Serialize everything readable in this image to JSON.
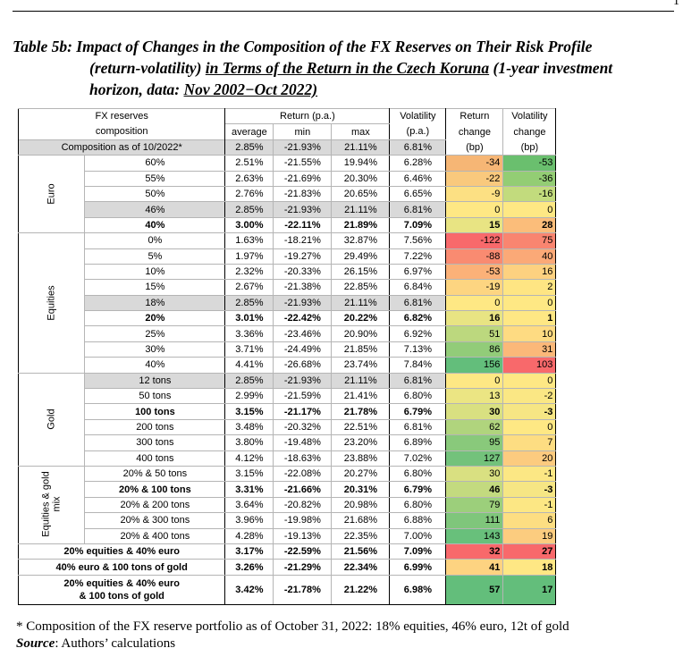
{
  "page_marker": "1",
  "caption": {
    "label": "Table 5b:",
    "line1": "Impact of Changes in the Composition of the FX Reserves on Their Risk Profile",
    "line2_a": "(return-volatility) ",
    "line2_b": "in Terms of the Return in the Czech Koruna",
    "line2_c": " (1-year investment",
    "line3_a": "horizon, data: ",
    "line3_b": "Nov 2002−Oct 2022)"
  },
  "header": {
    "fx1": "FX reserves",
    "fx2": "composition",
    "ret": "Return (p.a.)",
    "avg": "average",
    "min": "min",
    "max": "max",
    "vol1": "Volatility",
    "vol2": "(p.a.)",
    "rc1": "Return",
    "rc2": "change",
    "rc3": "(bp)",
    "vc1": "Volatility",
    "vc2": "change",
    "vc3": "(bp)"
  },
  "composition_row": {
    "label": "Composition as of 10/2022*",
    "avg": "2.85%",
    "min": "-21.93%",
    "max": "21.11%",
    "vol": "6.81%"
  },
  "groups": [
    {
      "name": "Euro",
      "rows": [
        {
          "label": "60%",
          "avg": "2.51%",
          "min": "-21.55%",
          "max": "19.94%",
          "vol": "6.28%",
          "rc": "-34",
          "vc": "-53",
          "rcc": "#f6b675",
          "vcc": "#6abf6e"
        },
        {
          "label": "55%",
          "avg": "2.63%",
          "min": "-21.69%",
          "max": "20.30%",
          "vol": "6.46%",
          "rc": "-22",
          "vc": "-36",
          "rcc": "#f9c97d",
          "vcc": "#93cd74"
        },
        {
          "label": "50%",
          "avg": "2.76%",
          "min": "-21.83%",
          "max": "20.65%",
          "vol": "6.65%",
          "rc": "-9",
          "vc": "-16",
          "rcc": "#fce083",
          "vcc": "#c2db7d"
        },
        {
          "label": "46%",
          "avg": "2.85%",
          "min": "-21.93%",
          "max": "21.11%",
          "vol": "6.81%",
          "rc": "0",
          "vc": "0",
          "rcc": "#fee884",
          "vcc": "#fee884",
          "hl": true
        },
        {
          "label": "40%",
          "avg": "3.00%",
          "min": "-22.11%",
          "max": "21.89%",
          "vol": "7.09%",
          "rc": "15",
          "vc": "28",
          "rcc": "#e8e483",
          "vcc": "#fbbd7a",
          "bold": true
        }
      ]
    },
    {
      "name": "Equities",
      "rows": [
        {
          "label": "0%",
          "avg": "1.63%",
          "min": "-18.21%",
          "max": "32.87%",
          "vol": "7.56%",
          "rc": "-122",
          "vc": "75",
          "rcc": "#f8696b",
          "vcc": "#f98570"
        },
        {
          "label": "5%",
          "avg": "1.97%",
          "min": "-19.27%",
          "max": "29.49%",
          "vol": "7.22%",
          "rc": "-88",
          "vc": "40",
          "rcc": "#f98b71",
          "vcc": "#fba977"
        },
        {
          "label": "10%",
          "avg": "2.32%",
          "min": "-20.33%",
          "max": "26.15%",
          "vol": "6.97%",
          "rc": "-53",
          "vc": "16",
          "rcc": "#fbb178",
          "vcc": "#fdd180"
        },
        {
          "label": "15%",
          "avg": "2.67%",
          "min": "-21.38%",
          "max": "22.85%",
          "vol": "6.84%",
          "rc": "-19",
          "vc": "2",
          "rcc": "#fdd581",
          "vcc": "#fee583"
        },
        {
          "label": "18%",
          "avg": "2.85%",
          "min": "-21.93%",
          "max": "21.11%",
          "vol": "6.81%",
          "rc": "0",
          "vc": "0",
          "rcc": "#fee884",
          "vcc": "#fee884",
          "hl": true
        },
        {
          "label": "20%",
          "avg": "3.01%",
          "min": "-22.42%",
          "max": "20.22%",
          "vol": "6.82%",
          "rc": "16",
          "vc": "1",
          "rcc": "#e8e483",
          "vcc": "#fee784",
          "bold": true
        },
        {
          "label": "25%",
          "avg": "3.36%",
          "min": "-23.46%",
          "max": "20.90%",
          "vol": "6.92%",
          "rc": "51",
          "vc": "10",
          "rcc": "#bcd87e",
          "vcc": "#fedb82"
        },
        {
          "label": "30%",
          "avg": "3.71%",
          "min": "-24.49%",
          "max": "21.85%",
          "vol": "7.13%",
          "rc": "86",
          "vc": "31",
          "rcc": "#92cc79",
          "vcc": "#fbb879"
        },
        {
          "label": "40%",
          "avg": "4.41%",
          "min": "-26.68%",
          "max": "23.74%",
          "vol": "7.84%",
          "rc": "156",
          "vc": "103",
          "rcc": "#63be7b",
          "vcc": "#f8696b"
        }
      ]
    },
    {
      "name": "Gold",
      "rows": [
        {
          "label": "12 tons",
          "avg": "2.85%",
          "min": "-21.93%",
          "max": "21.11%",
          "vol": "6.81%",
          "rc": "0",
          "vc": "0",
          "rcc": "#fee884",
          "vcc": "#fee884",
          "hl": true
        },
        {
          "label": "50 tons",
          "avg": "2.99%",
          "min": "-21.59%",
          "max": "21.41%",
          "vol": "6.80%",
          "rc": "13",
          "vc": "-2",
          "rcc": "#ebe583",
          "vcc": "#fae784"
        },
        {
          "label": "100 tons",
          "avg": "3.15%",
          "min": "-21.17%",
          "max": "21.78%",
          "vol": "6.79%",
          "rc": "30",
          "vc": "-3",
          "rcc": "#d9e081",
          "vcc": "#f6e684",
          "bold": true
        },
        {
          "label": "200 tons",
          "avg": "3.48%",
          "min": "-20.32%",
          "max": "22.51%",
          "vol": "6.81%",
          "rc": "62",
          "vc": "0",
          "rcc": "#b0d47d",
          "vcc": "#fee884"
        },
        {
          "label": "300 tons",
          "avg": "3.80%",
          "min": "-19.48%",
          "max": "23.20%",
          "vol": "6.89%",
          "rc": "95",
          "vc": "7",
          "rcc": "#89c97b",
          "vcc": "#fddd82"
        },
        {
          "label": "400 tons",
          "avg": "4.12%",
          "min": "-18.63%",
          "max": "23.88%",
          "vol": "7.02%",
          "rc": "127",
          "vc": "20",
          "rcc": "#73c27b",
          "vcc": "#fccb7f"
        }
      ]
    },
    {
      "name": "Equities & gold mix",
      "name_l1": "Equities & gold",
      "name_l2": "mix",
      "rows": [
        {
          "label": "20% & 50 tons",
          "avg": "3.15%",
          "min": "-22.08%",
          "max": "20.27%",
          "vol": "6.80%",
          "rc": "30",
          "vc": "-1",
          "rcc": "#d9e081",
          "vcc": "#fce784"
        },
        {
          "label": "20% & 100 tons",
          "avg": "3.31%",
          "min": "-21.66%",
          "max": "20.31%",
          "vol": "6.79%",
          "rc": "46",
          "vc": "-3",
          "rcc": "#c3da7f",
          "vcc": "#f6e684",
          "bold": true
        },
        {
          "label": "20% & 200 tons",
          "avg": "3.64%",
          "min": "-20.82%",
          "max": "20.98%",
          "vol": "6.80%",
          "rc": "79",
          "vc": "-1",
          "rcc": "#9ccf7b",
          "vcc": "#fce784"
        },
        {
          "label": "20% & 300 tons",
          "avg": "3.96%",
          "min": "-19.98%",
          "max": "21.68%",
          "vol": "6.88%",
          "rc": "111",
          "vc": "6",
          "rcc": "#7fc67b",
          "vcc": "#fdde82"
        },
        {
          "label": "20% & 400 tons",
          "avg": "4.28%",
          "min": "-19.13%",
          "max": "22.35%",
          "vol": "7.00%",
          "rc": "143",
          "vc": "19",
          "rcc": "#68c07b",
          "vcc": "#fccc7f"
        }
      ]
    }
  ],
  "combos": [
    {
      "label": "20% equities & 40% euro",
      "avg": "3.17%",
      "min": "-22.59%",
      "max": "21.56%",
      "vol": "7.09%",
      "rc": "32",
      "vc": "27",
      "rcc": "#f8696b",
      "vcc": "#f8696b"
    },
    {
      "label": "40% euro & 100 tons of gold",
      "avg": "3.26%",
      "min": "-21.29%",
      "max": "22.34%",
      "vol": "6.99%",
      "rc": "41",
      "vc": "18",
      "rcc": "#fdd381",
      "vcc": "#fee784"
    },
    {
      "label1": "20% equities & 40% euro",
      "label2": "& 100 tons of gold",
      "avg": "3.42%",
      "min": "-21.78%",
      "max": "21.22%",
      "vol": "6.98%",
      "rc": "57",
      "vc": "17",
      "rcc": "#63be7b",
      "vcc": "#63be7b"
    }
  ],
  "footnote": "* Composition of the FX reserve portfolio as of October 31, 2022: 18% equities, 46% euro, 12t of gold",
  "source_label": "Source",
  "source_text": ": Authors’ calculations"
}
